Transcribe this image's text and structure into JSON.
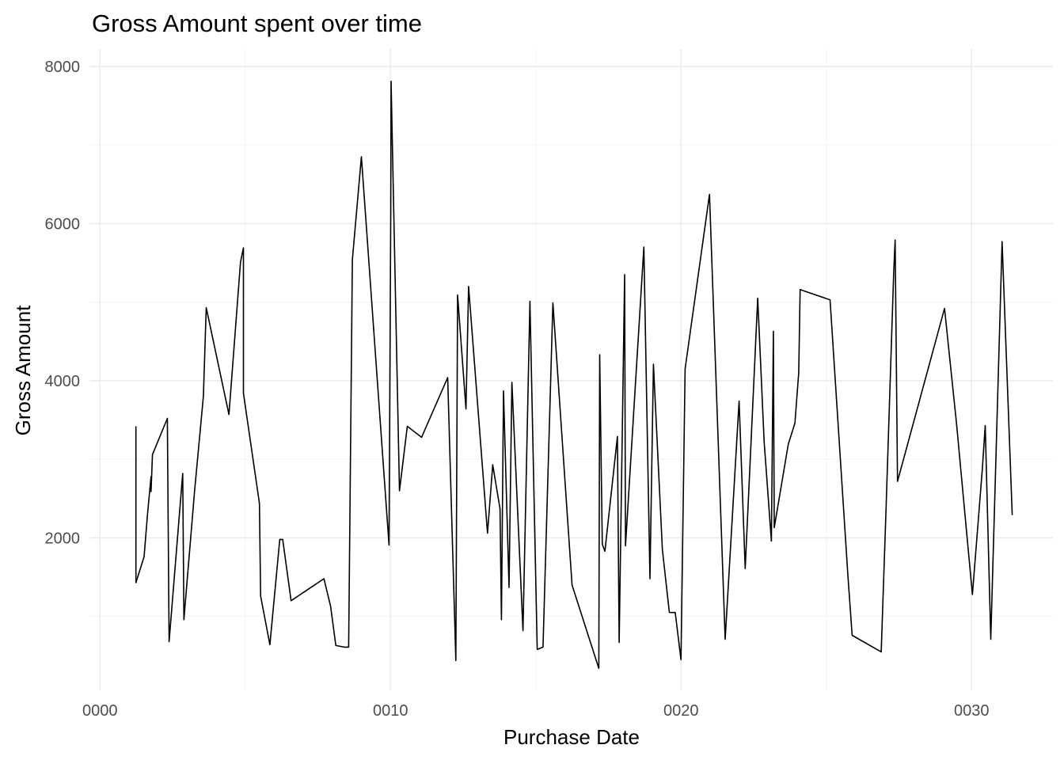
{
  "chart_data": {
    "type": "line",
    "title": "Gross Amount spent over time",
    "xlabel": "Purchase Date",
    "ylabel": "Gross Amount",
    "x_ticks": [
      {
        "value": 0,
        "label": "0000"
      },
      {
        "value": 10,
        "label": "0010"
      },
      {
        "value": 20,
        "label": "0020"
      },
      {
        "value": 30,
        "label": "0030"
      }
    ],
    "y_ticks": [
      {
        "value": 2000,
        "label": "2000"
      },
      {
        "value": 4000,
        "label": "4000"
      },
      {
        "value": 6000,
        "label": "6000"
      },
      {
        "value": 8000,
        "label": "8000"
      }
    ],
    "xlim": [
      -0.36,
      32.8
    ],
    "ylim": [
      60,
      8220
    ],
    "grid": true,
    "background": "#ffffff",
    "line_color": "#000000",
    "series": [
      {
        "points": [
          [
            1.24,
            3420
          ],
          [
            1.24,
            1430
          ],
          [
            1.52,
            1760
          ],
          [
            1.64,
            2310
          ],
          [
            1.76,
            2780
          ],
          [
            1.76,
            2590
          ],
          [
            1.81,
            3060
          ],
          [
            2.32,
            3520
          ],
          [
            2.38,
            680
          ],
          [
            2.85,
            2820
          ],
          [
            2.89,
            960
          ],
          [
            3.26,
            2610
          ],
          [
            3.56,
            3800
          ],
          [
            3.66,
            4930
          ],
          [
            4.44,
            3570
          ],
          [
            4.84,
            5510
          ],
          [
            4.94,
            5690
          ],
          [
            4.94,
            3840
          ],
          [
            5.49,
            2440
          ],
          [
            5.53,
            1260
          ],
          [
            5.85,
            640
          ],
          [
            6.19,
            1980
          ],
          [
            6.29,
            1980
          ],
          [
            6.58,
            1200
          ],
          [
            7.71,
            1480
          ],
          [
            7.94,
            1130
          ],
          [
            8.12,
            630
          ],
          [
            8.41,
            610
          ],
          [
            8.56,
            610
          ],
          [
            8.69,
            5540
          ],
          [
            9.0,
            6850
          ],
          [
            9.95,
            1910
          ],
          [
            10.01,
            6170
          ],
          [
            10.02,
            7810
          ],
          [
            10.31,
            2600
          ],
          [
            10.58,
            3420
          ],
          [
            11.07,
            3280
          ],
          [
            11.97,
            4040
          ],
          [
            12.25,
            440
          ],
          [
            12.31,
            5090
          ],
          [
            12.6,
            3640
          ],
          [
            12.69,
            5200
          ],
          [
            13.34,
            2060
          ],
          [
            13.52,
            2930
          ],
          [
            13.77,
            2370
          ],
          [
            13.82,
            960
          ],
          [
            13.89,
            3870
          ],
          [
            14.08,
            1370
          ],
          [
            14.18,
            3980
          ],
          [
            14.56,
            820
          ],
          [
            14.8,
            5010
          ],
          [
            15.05,
            580
          ],
          [
            15.25,
            610
          ],
          [
            15.59,
            4990
          ],
          [
            16.25,
            1400
          ],
          [
            17.17,
            340
          ],
          [
            17.2,
            4330
          ],
          [
            17.29,
            1920
          ],
          [
            17.38,
            1830
          ],
          [
            17.81,
            3290
          ],
          [
            17.87,
            670
          ],
          [
            18.06,
            5350
          ],
          [
            18.09,
            1900
          ],
          [
            18.72,
            5700
          ],
          [
            18.93,
            1480
          ],
          [
            19.05,
            4210
          ],
          [
            19.36,
            1850
          ],
          [
            19.6,
            1050
          ],
          [
            19.8,
            1050
          ],
          [
            20.0,
            450
          ],
          [
            20.14,
            4150
          ],
          [
            20.98,
            6370
          ],
          [
            21.52,
            710
          ],
          [
            22.0,
            3740
          ],
          [
            22.21,
            1610
          ],
          [
            22.64,
            5050
          ],
          [
            22.86,
            3230
          ],
          [
            23.11,
            1960
          ],
          [
            23.18,
            4630
          ],
          [
            23.21,
            2130
          ],
          [
            23.69,
            3190
          ],
          [
            23.92,
            3460
          ],
          [
            24.05,
            4100
          ],
          [
            24.1,
            5160
          ],
          [
            25.13,
            5030
          ],
          [
            25.74,
            1540
          ],
          [
            25.89,
            760
          ],
          [
            26.89,
            550
          ],
          [
            27.05,
            2300
          ],
          [
            27.32,
            5380
          ],
          [
            27.37,
            5790
          ],
          [
            27.45,
            2720
          ],
          [
            29.07,
            4920
          ],
          [
            29.48,
            3460
          ],
          [
            30.03,
            1280
          ],
          [
            30.37,
            2870
          ],
          [
            30.47,
            3430
          ],
          [
            30.66,
            710
          ],
          [
            31.05,
            5770
          ],
          [
            31.4,
            2290
          ]
        ]
      }
    ]
  }
}
